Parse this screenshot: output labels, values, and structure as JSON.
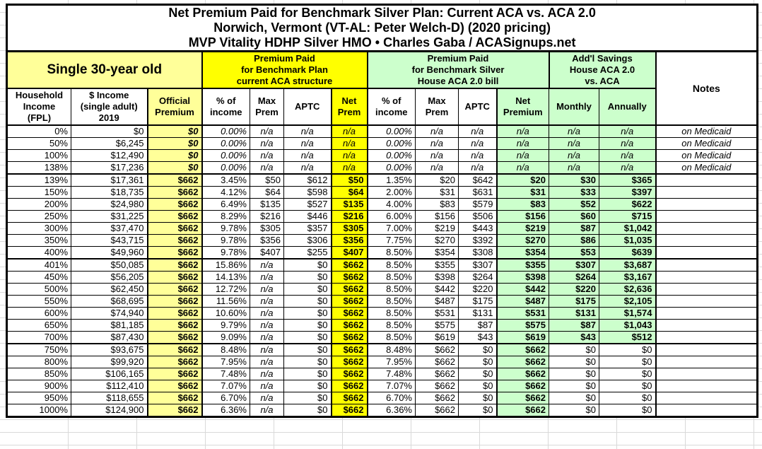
{
  "title": {
    "line1": "Net Premium Paid for Benchmark Silver Plan: Current ACA vs. ACA 2.0",
    "line2": "Norwich, Vermont (VT-AL: Peter Welch-D) (2020 pricing)",
    "line3": "MVP Vitality HDHP Silver HMO • Charles Gaba / ACASignups.net"
  },
  "colors": {
    "light_yellow": "#FFFF99",
    "bright_yellow": "#FFFF00",
    "light_green": "#CCFFCC",
    "border": "#000000"
  },
  "chart_data": {
    "type": "table",
    "title": "Net Premium Paid for Benchmark Silver Plan: Current ACA vs. ACA 2.0",
    "subtitle": "Norwich, Vermont (VT-AL: Peter Welch-D) (2020 pricing)",
    "subtitle2": "MVP Vitality HDHP Silver HMO • Charles Gaba / ACASignups.net",
    "column_groups": [
      {
        "label": "Single 30-year old",
        "span": 3,
        "color": "#FFFF99"
      },
      {
        "label": "Premium Paid\nfor Benchmark Plan\ncurrent ACA structure",
        "span": 4,
        "color": "#FFFF00"
      },
      {
        "label": "Premium Paid\nfor Benchmark Silver\nHouse ACA 2.0 bill",
        "span": 4,
        "color": "#CCFFCC"
      },
      {
        "label": "Add'l Savings\nHouse ACA 2.0\nvs. ACA",
        "span": 2,
        "color": "#CCFFCC"
      },
      {
        "label": "Notes",
        "span": 1,
        "color": "#FFFFFF"
      }
    ],
    "columns": [
      "Household\nIncome\n(FPL)",
      "$ Income\n(single adult)\n2019",
      "Official\nPremium",
      "% of\nincome",
      "Max\nPrem",
      "APTC",
      "Net\nPrem",
      "% of\nincome",
      "Max\nPrem",
      "APTC",
      "Net\nPremium",
      "Monthly",
      "Annually"
    ],
    "rows": [
      {
        "cells": [
          "0%",
          "$0",
          "$0",
          "0.00%",
          "n/a",
          "n/a",
          "n/a",
          "0.00%",
          "n/a",
          "n/a",
          "n/a",
          "n/a",
          "n/a",
          "on Medicaid"
        ],
        "medicaid": true,
        "savings_green": true,
        "section_end": false
      },
      {
        "cells": [
          "50%",
          "$6,245",
          "$0",
          "0.00%",
          "n/a",
          "n/a",
          "n/a",
          "0.00%",
          "n/a",
          "n/a",
          "n/a",
          "n/a",
          "n/a",
          "on Medicaid"
        ],
        "medicaid": true,
        "savings_green": true,
        "section_end": false
      },
      {
        "cells": [
          "100%",
          "$12,490",
          "$0",
          "0.00%",
          "n/a",
          "n/a",
          "n/a",
          "0.00%",
          "n/a",
          "n/a",
          "n/a",
          "n/a",
          "n/a",
          "on Medicaid"
        ],
        "medicaid": true,
        "savings_green": true,
        "section_end": false
      },
      {
        "cells": [
          "138%",
          "$17,236",
          "$0",
          "0.00%",
          "n/a",
          "n/a",
          "n/a",
          "0.00%",
          "n/a",
          "n/a",
          "n/a",
          "n/a",
          "n/a",
          "on Medicaid"
        ],
        "medicaid": true,
        "savings_green": true,
        "section_end": true
      },
      {
        "cells": [
          "139%",
          "$17,361",
          "$662",
          "3.45%",
          "$50",
          "$612",
          "$50",
          "1.35%",
          "$20",
          "$642",
          "$20",
          "$30",
          "$365",
          ""
        ],
        "medicaid": false,
        "savings_green": true,
        "section_end": false
      },
      {
        "cells": [
          "150%",
          "$18,735",
          "$662",
          "4.12%",
          "$64",
          "$598",
          "$64",
          "2.00%",
          "$31",
          "$631",
          "$31",
          "$33",
          "$397",
          ""
        ],
        "medicaid": false,
        "savings_green": true,
        "section_end": false
      },
      {
        "cells": [
          "200%",
          "$24,980",
          "$662",
          "6.49%",
          "$135",
          "$527",
          "$135",
          "4.00%",
          "$83",
          "$579",
          "$83",
          "$52",
          "$622",
          ""
        ],
        "medicaid": false,
        "savings_green": true,
        "section_end": false
      },
      {
        "cells": [
          "250%",
          "$31,225",
          "$662",
          "8.29%",
          "$216",
          "$446",
          "$216",
          "6.00%",
          "$156",
          "$506",
          "$156",
          "$60",
          "$715",
          ""
        ],
        "medicaid": false,
        "savings_green": true,
        "section_end": false
      },
      {
        "cells": [
          "300%",
          "$37,470",
          "$662",
          "9.78%",
          "$305",
          "$357",
          "$305",
          "7.00%",
          "$219",
          "$443",
          "$219",
          "$87",
          "$1,042",
          ""
        ],
        "medicaid": false,
        "savings_green": true,
        "section_end": false
      },
      {
        "cells": [
          "350%",
          "$43,715",
          "$662",
          "9.78%",
          "$356",
          "$306",
          "$356",
          "7.75%",
          "$270",
          "$392",
          "$270",
          "$86",
          "$1,035",
          ""
        ],
        "medicaid": false,
        "savings_green": true,
        "section_end": false
      },
      {
        "cells": [
          "400%",
          "$49,960",
          "$662",
          "9.78%",
          "$407",
          "$255",
          "$407",
          "8.50%",
          "$354",
          "$308",
          "$354",
          "$53",
          "$639",
          ""
        ],
        "medicaid": false,
        "savings_green": true,
        "section_end": true
      },
      {
        "cells": [
          "401%",
          "$50,085",
          "$662",
          "15.86%",
          "n/a",
          "$0",
          "$662",
          "8.50%",
          "$355",
          "$307",
          "$355",
          "$307",
          "$3,687",
          ""
        ],
        "medicaid": false,
        "savings_green": true,
        "section_end": false
      },
      {
        "cells": [
          "450%",
          "$56,205",
          "$662",
          "14.13%",
          "n/a",
          "$0",
          "$662",
          "8.50%",
          "$398",
          "$264",
          "$398",
          "$264",
          "$3,167",
          ""
        ],
        "medicaid": false,
        "savings_green": true,
        "section_end": false
      },
      {
        "cells": [
          "500%",
          "$62,450",
          "$662",
          "12.72%",
          "n/a",
          "$0",
          "$662",
          "8.50%",
          "$442",
          "$220",
          "$442",
          "$220",
          "$2,636",
          ""
        ],
        "medicaid": false,
        "savings_green": true,
        "section_end": false
      },
      {
        "cells": [
          "550%",
          "$68,695",
          "$662",
          "11.56%",
          "n/a",
          "$0",
          "$662",
          "8.50%",
          "$487",
          "$175",
          "$487",
          "$175",
          "$2,105",
          ""
        ],
        "medicaid": false,
        "savings_green": true,
        "section_end": false
      },
      {
        "cells": [
          "600%",
          "$74,940",
          "$662",
          "10.60%",
          "n/a",
          "$0",
          "$662",
          "8.50%",
          "$531",
          "$131",
          "$531",
          "$131",
          "$1,574",
          ""
        ],
        "medicaid": false,
        "savings_green": true,
        "section_end": false
      },
      {
        "cells": [
          "650%",
          "$81,185",
          "$662",
          "9.79%",
          "n/a",
          "$0",
          "$662",
          "8.50%",
          "$575",
          "$87",
          "$575",
          "$87",
          "$1,043",
          ""
        ],
        "medicaid": false,
        "savings_green": true,
        "section_end": false
      },
      {
        "cells": [
          "700%",
          "$87,430",
          "$662",
          "9.09%",
          "n/a",
          "$0",
          "$662",
          "8.50%",
          "$619",
          "$43",
          "$619",
          "$43",
          "$512",
          ""
        ],
        "medicaid": false,
        "savings_green": true,
        "section_end": true
      },
      {
        "cells": [
          "750%",
          "$93,675",
          "$662",
          "8.48%",
          "n/a",
          "$0",
          "$662",
          "8.48%",
          "$662",
          "$0",
          "$662",
          "$0",
          "$0",
          ""
        ],
        "medicaid": false,
        "savings_green": false,
        "section_end": false
      },
      {
        "cells": [
          "800%",
          "$99,920",
          "$662",
          "7.95%",
          "n/a",
          "$0",
          "$662",
          "7.95%",
          "$662",
          "$0",
          "$662",
          "$0",
          "$0",
          ""
        ],
        "medicaid": false,
        "savings_green": false,
        "section_end": false
      },
      {
        "cells": [
          "850%",
          "$106,165",
          "$662",
          "7.48%",
          "n/a",
          "$0",
          "$662",
          "7.48%",
          "$662",
          "$0",
          "$662",
          "$0",
          "$0",
          ""
        ],
        "medicaid": false,
        "savings_green": false,
        "section_end": false
      },
      {
        "cells": [
          "900%",
          "$112,410",
          "$662",
          "7.07%",
          "n/a",
          "$0",
          "$662",
          "7.07%",
          "$662",
          "$0",
          "$662",
          "$0",
          "$0",
          ""
        ],
        "medicaid": false,
        "savings_green": false,
        "section_end": false
      },
      {
        "cells": [
          "950%",
          "$118,655",
          "$662",
          "6.70%",
          "n/a",
          "$0",
          "$662",
          "6.70%",
          "$662",
          "$0",
          "$662",
          "$0",
          "$0",
          ""
        ],
        "medicaid": false,
        "savings_green": false,
        "section_end": false
      },
      {
        "cells": [
          "1000%",
          "$124,900",
          "$662",
          "6.36%",
          "n/a",
          "$0",
          "$662",
          "6.36%",
          "$662",
          "$0",
          "$662",
          "$0",
          "$0",
          ""
        ],
        "medicaid": false,
        "savings_green": false,
        "section_end": false
      }
    ]
  }
}
